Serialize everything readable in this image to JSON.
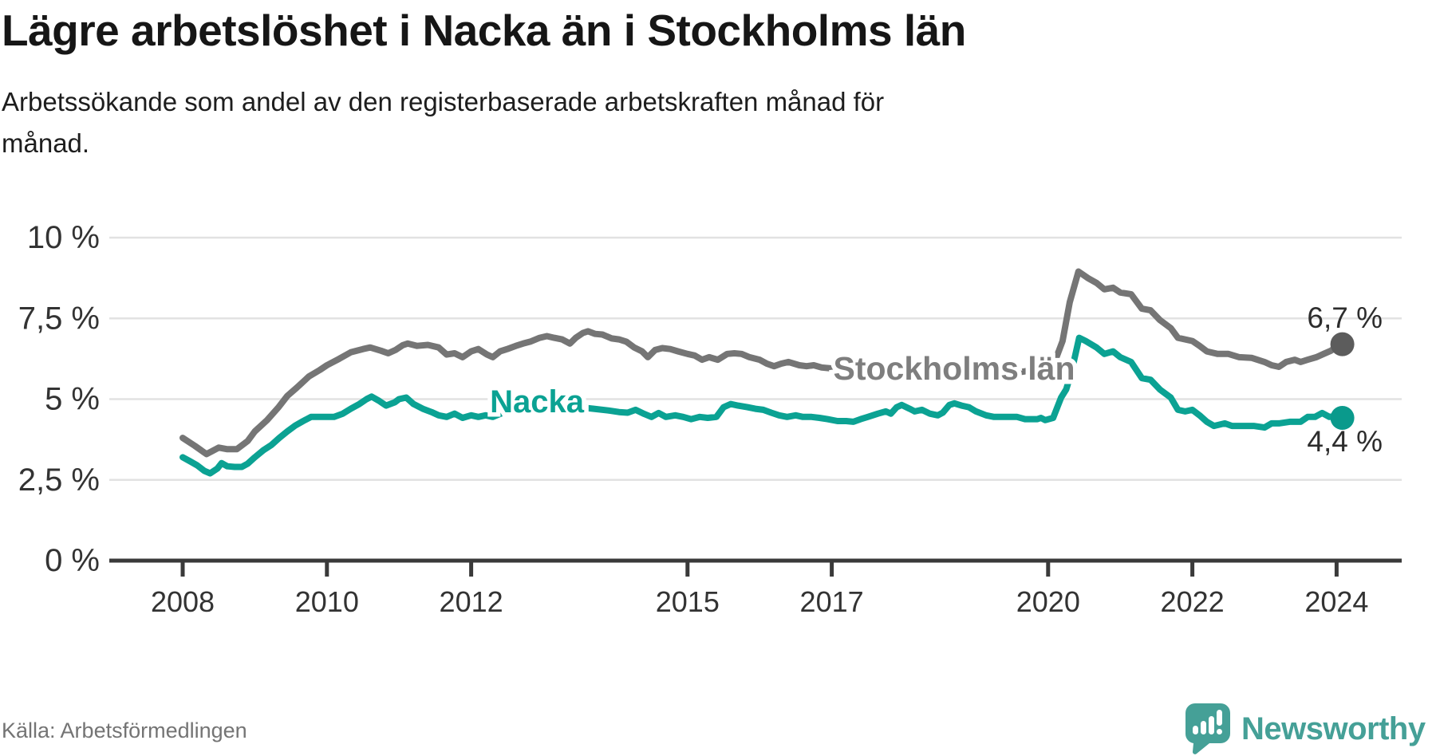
{
  "header": {
    "title": "Lägre arbetslöshet i Nacka än i Stockholms län",
    "subtitle_line1": "Arbetssökande som andel av den registerbaserade arbetskraften månad för",
    "subtitle_line2": "månad."
  },
  "footer": {
    "source": "Källa: Arbetsförmedlingen",
    "brand": "Newsworthy"
  },
  "colors": {
    "nacka": "#0ba293",
    "stockholm_line": "#757575",
    "stockholm_label": "#7e7e7e",
    "stockholm_dot": "#5c5c5c",
    "nacka_dot": "#0a9a8c",
    "value_label": "#2d2d2d",
    "axis": "#3a3a3a",
    "grid": "#e2e2e2",
    "tick_label": "#333333",
    "brand_teal": "#45a097"
  },
  "chart_data": {
    "type": "line",
    "title": "Lägre arbetslöshet i Nacka än i Stockholms län",
    "xlabel": "",
    "ylabel": "",
    "ylim": [
      0,
      10
    ],
    "xlim": [
      2007.9,
      2024.6
    ],
    "grid": "horizontal",
    "legend_position": "inline-labels",
    "yticks": [
      {
        "value": 0,
        "label": "0 %"
      },
      {
        "value": 2.5,
        "label": "2,5 %"
      },
      {
        "value": 5,
        "label": "5 %"
      },
      {
        "value": 7.5,
        "label": "7,5 %"
      },
      {
        "value": 10,
        "label": "10 %"
      }
    ],
    "xticks": [
      {
        "year": 2008,
        "label": "2008"
      },
      {
        "year": 2010,
        "label": "2010"
      },
      {
        "year": 2012,
        "label": "2012"
      },
      {
        "year": 2015,
        "label": "2015"
      },
      {
        "year": 2017,
        "label": "2017"
      },
      {
        "year": 2020,
        "label": "2020"
      },
      {
        "year": 2022,
        "label": "2022"
      },
      {
        "year": 2024,
        "label": "2024"
      }
    ],
    "series": [
      {
        "name": "Stockholms län",
        "slug": "stockholms-lan",
        "end_label": "6,7 %",
        "end_value": 6.7,
        "points": [
          [
            2008.0,
            3.8
          ],
          [
            2008.17,
            3.55
          ],
          [
            2008.33,
            3.3
          ],
          [
            2008.5,
            3.5
          ],
          [
            2008.62,
            3.45
          ],
          [
            2008.75,
            3.45
          ],
          [
            2008.9,
            3.7
          ],
          [
            2009.0,
            4.0
          ],
          [
            2009.17,
            4.35
          ],
          [
            2009.33,
            4.75
          ],
          [
            2009.45,
            5.1
          ],
          [
            2009.58,
            5.35
          ],
          [
            2009.75,
            5.7
          ],
          [
            2009.9,
            5.9
          ],
          [
            2010.0,
            6.05
          ],
          [
            2010.17,
            6.25
          ],
          [
            2010.33,
            6.45
          ],
          [
            2010.5,
            6.55
          ],
          [
            2010.6,
            6.6
          ],
          [
            2010.75,
            6.5
          ],
          [
            2010.85,
            6.42
          ],
          [
            2010.95,
            6.52
          ],
          [
            2011.05,
            6.67
          ],
          [
            2011.12,
            6.72
          ],
          [
            2011.25,
            6.65
          ],
          [
            2011.4,
            6.68
          ],
          [
            2011.55,
            6.6
          ],
          [
            2011.66,
            6.38
          ],
          [
            2011.77,
            6.42
          ],
          [
            2011.88,
            6.3
          ],
          [
            2012.0,
            6.48
          ],
          [
            2012.1,
            6.55
          ],
          [
            2012.22,
            6.38
          ],
          [
            2012.3,
            6.3
          ],
          [
            2012.4,
            6.48
          ],
          [
            2012.5,
            6.55
          ],
          [
            2012.62,
            6.65
          ],
          [
            2012.72,
            6.72
          ],
          [
            2012.82,
            6.78
          ],
          [
            2012.95,
            6.9
          ],
          [
            2013.05,
            6.95
          ],
          [
            2013.15,
            6.9
          ],
          [
            2013.26,
            6.85
          ],
          [
            2013.37,
            6.72
          ],
          [
            2013.45,
            6.9
          ],
          [
            2013.55,
            7.05
          ],
          [
            2013.62,
            7.1
          ],
          [
            2013.72,
            7.02
          ],
          [
            2013.82,
            7.0
          ],
          [
            2013.95,
            6.88
          ],
          [
            2014.05,
            6.85
          ],
          [
            2014.15,
            6.78
          ],
          [
            2014.26,
            6.6
          ],
          [
            2014.37,
            6.48
          ],
          [
            2014.45,
            6.3
          ],
          [
            2014.55,
            6.52
          ],
          [
            2014.65,
            6.58
          ],
          [
            2014.76,
            6.55
          ],
          [
            2014.87,
            6.48
          ],
          [
            2015.0,
            6.4
          ],
          [
            2015.1,
            6.35
          ],
          [
            2015.2,
            6.22
          ],
          [
            2015.3,
            6.3
          ],
          [
            2015.42,
            6.22
          ],
          [
            2015.55,
            6.4
          ],
          [
            2015.65,
            6.42
          ],
          [
            2015.75,
            6.4
          ],
          [
            2015.86,
            6.3
          ],
          [
            2016.0,
            6.22
          ],
          [
            2016.1,
            6.1
          ],
          [
            2016.2,
            6.02
          ],
          [
            2016.3,
            6.1
          ],
          [
            2016.4,
            6.15
          ],
          [
            2016.55,
            6.05
          ],
          [
            2016.65,
            6.02
          ],
          [
            2016.75,
            6.05
          ],
          [
            2016.86,
            5.98
          ],
          [
            2017.0,
            5.95
          ],
          [
            2017.25,
            6.0
          ],
          [
            2017.5,
            6.05
          ],
          [
            2017.75,
            6.0
          ],
          [
            2018.0,
            5.95
          ],
          [
            2018.3,
            5.95
          ],
          [
            2018.6,
            6.0
          ],
          [
            2018.9,
            5.9
          ],
          [
            2019.2,
            5.85
          ],
          [
            2019.5,
            5.8
          ],
          [
            2019.8,
            5.9
          ],
          [
            2020.0,
            6.0
          ],
          [
            2020.1,
            6.2
          ],
          [
            2020.2,
            6.8
          ],
          [
            2020.3,
            8.0
          ],
          [
            2020.42,
            8.95
          ],
          [
            2020.55,
            8.75
          ],
          [
            2020.67,
            8.6
          ],
          [
            2020.78,
            8.4
          ],
          [
            2020.9,
            8.45
          ],
          [
            2021.0,
            8.3
          ],
          [
            2021.15,
            8.25
          ],
          [
            2021.3,
            7.8
          ],
          [
            2021.42,
            7.75
          ],
          [
            2021.55,
            7.45
          ],
          [
            2021.7,
            7.2
          ],
          [
            2021.8,
            6.9
          ],
          [
            2021.9,
            6.85
          ],
          [
            2022.0,
            6.8
          ],
          [
            2022.1,
            6.65
          ],
          [
            2022.2,
            6.48
          ],
          [
            2022.35,
            6.4
          ],
          [
            2022.5,
            6.4
          ],
          [
            2022.65,
            6.3
          ],
          [
            2022.82,
            6.28
          ],
          [
            2023.0,
            6.15
          ],
          [
            2023.1,
            6.05
          ],
          [
            2023.2,
            6.0
          ],
          [
            2023.3,
            6.15
          ],
          [
            2023.42,
            6.22
          ],
          [
            2023.5,
            6.15
          ],
          [
            2023.6,
            6.22
          ],
          [
            2023.72,
            6.3
          ],
          [
            2023.82,
            6.4
          ],
          [
            2023.92,
            6.5
          ],
          [
            2024.0,
            6.62
          ],
          [
            2024.08,
            6.7
          ]
        ]
      },
      {
        "name": "Nacka",
        "slug": "nacka",
        "end_label": "4,4 %",
        "end_value": 4.4,
        "points": [
          [
            2008.0,
            3.2
          ],
          [
            2008.1,
            3.08
          ],
          [
            2008.2,
            2.95
          ],
          [
            2008.3,
            2.78
          ],
          [
            2008.38,
            2.7
          ],
          [
            2008.48,
            2.85
          ],
          [
            2008.54,
            3.02
          ],
          [
            2008.62,
            2.92
          ],
          [
            2008.72,
            2.9
          ],
          [
            2008.82,
            2.9
          ],
          [
            2008.9,
            3.0
          ],
          [
            2009.0,
            3.2
          ],
          [
            2009.12,
            3.42
          ],
          [
            2009.23,
            3.58
          ],
          [
            2009.34,
            3.8
          ],
          [
            2009.45,
            4.0
          ],
          [
            2009.56,
            4.18
          ],
          [
            2009.67,
            4.32
          ],
          [
            2009.78,
            4.45
          ],
          [
            2009.9,
            4.45
          ],
          [
            2010.0,
            4.45
          ],
          [
            2010.1,
            4.45
          ],
          [
            2010.22,
            4.55
          ],
          [
            2010.33,
            4.7
          ],
          [
            2010.45,
            4.85
          ],
          [
            2010.55,
            5.0
          ],
          [
            2010.62,
            5.08
          ],
          [
            2010.72,
            4.95
          ],
          [
            2010.82,
            4.8
          ],
          [
            2010.94,
            4.9
          ],
          [
            2011.0,
            5.0
          ],
          [
            2011.1,
            5.05
          ],
          [
            2011.2,
            4.85
          ],
          [
            2011.33,
            4.7
          ],
          [
            2011.45,
            4.6
          ],
          [
            2011.55,
            4.5
          ],
          [
            2011.66,
            4.45
          ],
          [
            2011.77,
            4.55
          ],
          [
            2011.88,
            4.42
          ],
          [
            2012.0,
            4.5
          ],
          [
            2012.1,
            4.45
          ],
          [
            2012.2,
            4.5
          ],
          [
            2012.3,
            4.45
          ],
          [
            2012.44,
            4.58
          ],
          [
            2012.55,
            4.75
          ],
          [
            2012.7,
            4.8
          ],
          [
            2012.9,
            4.85
          ],
          [
            2013.1,
            4.9
          ],
          [
            2013.3,
            4.85
          ],
          [
            2013.5,
            4.75
          ],
          [
            2013.7,
            4.7
          ],
          [
            2013.9,
            4.65
          ],
          [
            2014.05,
            4.6
          ],
          [
            2014.17,
            4.58
          ],
          [
            2014.28,
            4.67
          ],
          [
            2014.4,
            4.54
          ],
          [
            2014.5,
            4.45
          ],
          [
            2014.6,
            4.57
          ],
          [
            2014.7,
            4.45
          ],
          [
            2014.83,
            4.5
          ],
          [
            2014.94,
            4.45
          ],
          [
            2015.05,
            4.38
          ],
          [
            2015.17,
            4.45
          ],
          [
            2015.28,
            4.42
          ],
          [
            2015.4,
            4.45
          ],
          [
            2015.5,
            4.75
          ],
          [
            2015.6,
            4.85
          ],
          [
            2015.7,
            4.8
          ],
          [
            2015.83,
            4.75
          ],
          [
            2015.94,
            4.7
          ],
          [
            2016.05,
            4.67
          ],
          [
            2016.16,
            4.58
          ],
          [
            2016.27,
            4.5
          ],
          [
            2016.38,
            4.45
          ],
          [
            2016.5,
            4.5
          ],
          [
            2016.6,
            4.45
          ],
          [
            2016.72,
            4.45
          ],
          [
            2016.83,
            4.42
          ],
          [
            2016.94,
            4.38
          ],
          [
            2017.08,
            4.32
          ],
          [
            2017.2,
            4.32
          ],
          [
            2017.3,
            4.3
          ],
          [
            2017.4,
            4.38
          ],
          [
            2017.5,
            4.45
          ],
          [
            2017.64,
            4.55
          ],
          [
            2017.75,
            4.62
          ],
          [
            2017.82,
            4.55
          ],
          [
            2017.9,
            4.75
          ],
          [
            2017.97,
            4.82
          ],
          [
            2018.08,
            4.7
          ],
          [
            2018.15,
            4.62
          ],
          [
            2018.25,
            4.67
          ],
          [
            2018.36,
            4.55
          ],
          [
            2018.47,
            4.5
          ],
          [
            2018.54,
            4.58
          ],
          [
            2018.63,
            4.82
          ],
          [
            2018.7,
            4.87
          ],
          [
            2018.8,
            4.8
          ],
          [
            2018.9,
            4.75
          ],
          [
            2019.0,
            4.62
          ],
          [
            2019.14,
            4.5
          ],
          [
            2019.25,
            4.45
          ],
          [
            2019.45,
            4.45
          ],
          [
            2019.57,
            4.45
          ],
          [
            2019.68,
            4.38
          ],
          [
            2019.85,
            4.38
          ],
          [
            2019.9,
            4.42
          ],
          [
            2019.96,
            4.35
          ],
          [
            2020.07,
            4.42
          ],
          [
            2020.18,
            5.05
          ],
          [
            2020.25,
            5.3
          ],
          [
            2020.32,
            5.8
          ],
          [
            2020.43,
            6.9
          ],
          [
            2020.52,
            6.8
          ],
          [
            2020.67,
            6.6
          ],
          [
            2020.78,
            6.4
          ],
          [
            2020.9,
            6.48
          ],
          [
            2021.0,
            6.3
          ],
          [
            2021.15,
            6.15
          ],
          [
            2021.3,
            5.65
          ],
          [
            2021.42,
            5.6
          ],
          [
            2021.55,
            5.3
          ],
          [
            2021.7,
            5.05
          ],
          [
            2021.8,
            4.67
          ],
          [
            2021.9,
            4.62
          ],
          [
            2022.0,
            4.67
          ],
          [
            2022.1,
            4.5
          ],
          [
            2022.2,
            4.3
          ],
          [
            2022.3,
            4.17
          ],
          [
            2022.45,
            4.25
          ],
          [
            2022.55,
            4.17
          ],
          [
            2022.7,
            4.17
          ],
          [
            2022.85,
            4.17
          ],
          [
            2023.0,
            4.12
          ],
          [
            2023.1,
            4.25
          ],
          [
            2023.2,
            4.25
          ],
          [
            2023.35,
            4.3
          ],
          [
            2023.5,
            4.3
          ],
          [
            2023.6,
            4.45
          ],
          [
            2023.7,
            4.45
          ],
          [
            2023.8,
            4.57
          ],
          [
            2023.9,
            4.45
          ],
          [
            2024.0,
            4.48
          ],
          [
            2024.08,
            4.42
          ]
        ]
      }
    ]
  }
}
